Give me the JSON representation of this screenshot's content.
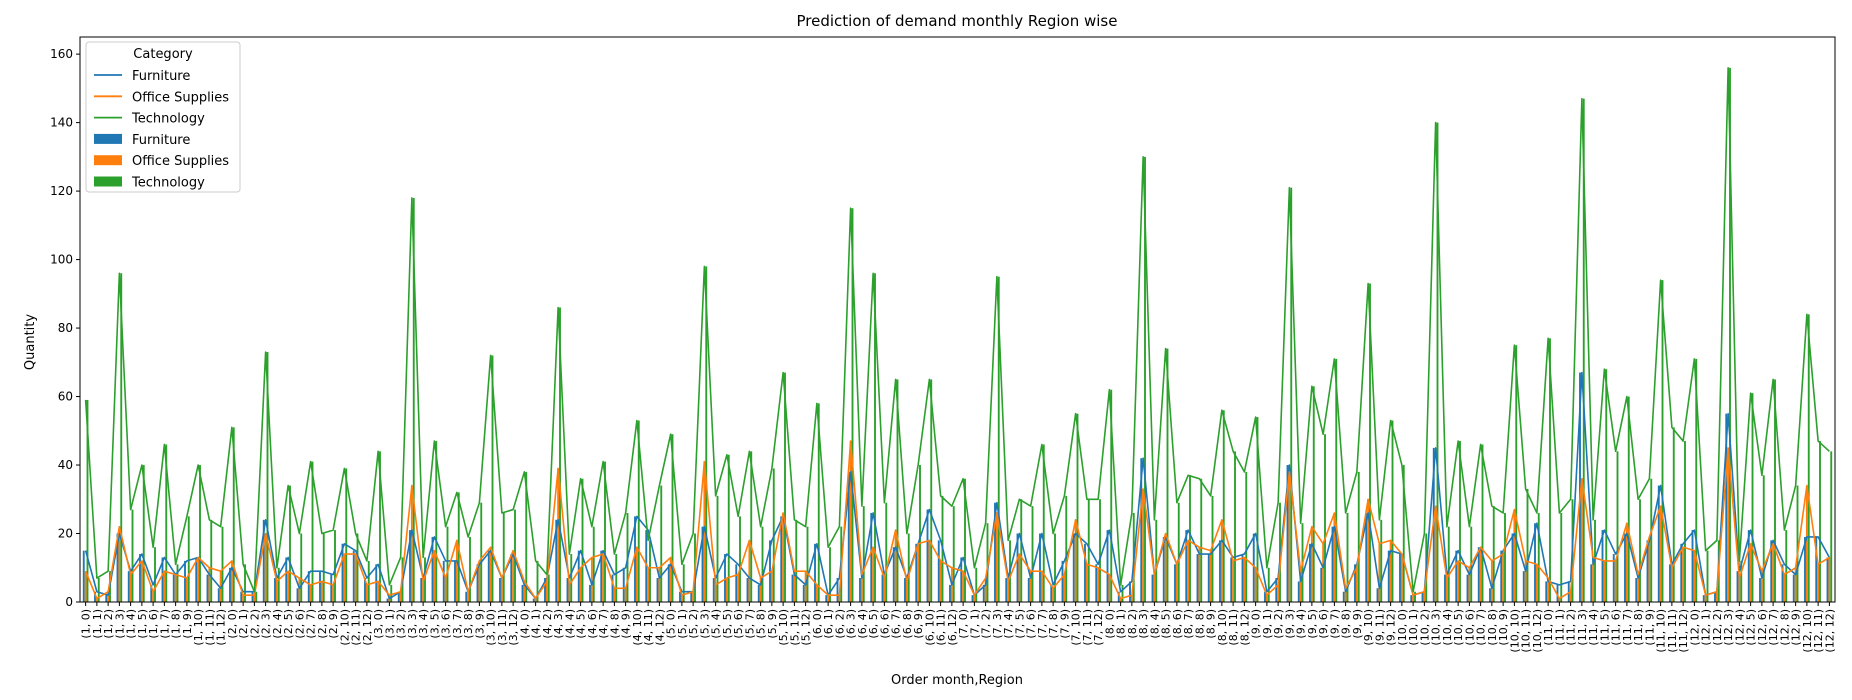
{
  "chart_data": {
    "type": "bar",
    "title": "Prediction of demand monthly Region wise",
    "xlabel": "Order month,Region",
    "ylabel": "Quantity",
    "ylim": [
      0,
      165
    ],
    "yticks": [
      0,
      20,
      40,
      60,
      80,
      100,
      120,
      140,
      160
    ],
    "grid": false,
    "legend": {
      "title": "Category",
      "placement": "upper-left",
      "entries": [
        {
          "kind": "line",
          "label": "Furniture",
          "color": "#1f77b4"
        },
        {
          "kind": "line",
          "label": "Office Supplies",
          "color": "#ff7f0e"
        },
        {
          "kind": "line",
          "label": "Technology",
          "color": "#2ca02c"
        },
        {
          "kind": "bar",
          "label": "Furniture",
          "color": "#1f77b4"
        },
        {
          "kind": "bar",
          "label": "Office Supplies",
          "color": "#ff7f0e"
        },
        {
          "kind": "bar",
          "label": "Technology",
          "color": "#2ca02c"
        }
      ]
    },
    "categories": [
      "(1, 0)",
      "(1, 1)",
      "(1, 2)",
      "(1, 3)",
      "(1, 4)",
      "(1, 5)",
      "(1, 6)",
      "(1, 7)",
      "(1, 8)",
      "(1, 9)",
      "(1, 10)",
      "(1, 11)",
      "(1, 12)",
      "(2, 0)",
      "(2, 1)",
      "(2, 2)",
      "(2, 3)",
      "(2, 4)",
      "(2, 5)",
      "(2, 6)",
      "(2, 7)",
      "(2, 8)",
      "(2, 9)",
      "(2, 10)",
      "(2, 11)",
      "(2, 12)",
      "(3, 0)",
      "(3, 1)",
      "(3, 2)",
      "(3, 3)",
      "(3, 4)",
      "(3, 5)",
      "(3, 6)",
      "(3, 7)",
      "(3, 8)",
      "(3, 9)",
      "(3, 10)",
      "(3, 11)",
      "(3, 12)",
      "(4, 0)",
      "(4, 1)",
      "(4, 2)",
      "(4, 3)",
      "(4, 4)",
      "(4, 5)",
      "(4, 6)",
      "(4, 7)",
      "(4, 8)",
      "(4, 9)",
      "(4, 10)",
      "(4, 11)",
      "(4, 12)",
      "(5, 0)",
      "(5, 1)",
      "(5, 2)",
      "(5, 3)",
      "(5, 4)",
      "(5, 5)",
      "(5, 6)",
      "(5, 7)",
      "(5, 8)",
      "(5, 9)",
      "(5, 10)",
      "(5, 11)",
      "(5, 12)",
      "(6, 0)",
      "(6, 1)",
      "(6, 2)",
      "(6, 3)",
      "(6, 4)",
      "(6, 5)",
      "(6, 6)",
      "(6, 7)",
      "(6, 8)",
      "(6, 9)",
      "(6, 10)",
      "(6, 11)",
      "(6, 12)",
      "(7, 0)",
      "(7, 1)",
      "(7, 2)",
      "(7, 3)",
      "(7, 4)",
      "(7, 5)",
      "(7, 6)",
      "(7, 7)",
      "(7, 8)",
      "(7, 9)",
      "(7, 10)",
      "(7, 11)",
      "(7, 12)",
      "(8, 0)",
      "(8, 1)",
      "(8, 2)",
      "(8, 3)",
      "(8, 4)",
      "(8, 5)",
      "(8, 6)",
      "(8, 7)",
      "(8, 8)",
      "(8, 9)",
      "(8, 10)",
      "(8, 11)",
      "(8, 12)",
      "(9, 0)",
      "(9, 1)",
      "(9, 2)",
      "(9, 3)",
      "(9, 4)",
      "(9, 5)",
      "(9, 6)",
      "(9, 7)",
      "(9, 8)",
      "(9, 9)",
      "(9, 10)",
      "(9, 11)",
      "(9, 12)",
      "(10, 0)",
      "(10, 1)",
      "(10, 2)",
      "(10, 3)",
      "(10, 4)",
      "(10, 5)",
      "(10, 6)",
      "(10, 7)",
      "(10, 8)",
      "(10, 9)",
      "(10, 10)",
      "(10, 11)",
      "(10, 12)",
      "(11, 0)",
      "(11, 1)",
      "(11, 2)",
      "(11, 3)",
      "(11, 4)",
      "(11, 5)",
      "(11, 6)",
      "(11, 7)",
      "(11, 8)",
      "(11, 9)",
      "(11, 10)",
      "(11, 11)",
      "(11, 12)",
      "(12, 0)",
      "(12, 1)",
      "(12, 2)",
      "(12, 3)",
      "(12, 4)",
      "(12, 5)",
      "(12, 6)",
      "(12, 7)",
      "(12, 8)",
      "(12, 9)",
      "(12, 10)",
      "(12, 11)",
      "(12, 12)"
    ],
    "series": [
      {
        "name": "Furniture",
        "color": "#1f77b4",
        "values": [
          15,
          3,
          2,
          20,
          9,
          14,
          5,
          13,
          8,
          12,
          13,
          8,
          4,
          10,
          3,
          3,
          24,
          7,
          13,
          4,
          9,
          9,
          8,
          17,
          15,
          7,
          11,
          1,
          3,
          21,
          7,
          19,
          12,
          12,
          3,
          11,
          15,
          7,
          14,
          5,
          1,
          7,
          24,
          7,
          15,
          5,
          15,
          8,
          10,
          25,
          21,
          7,
          11,
          3,
          3,
          22,
          7,
          14,
          11,
          7,
          5,
          18,
          25,
          8,
          5,
          17,
          2,
          7,
          38,
          7,
          26,
          8,
          16,
          7,
          17,
          27,
          18,
          5,
          13,
          2,
          5,
          29,
          7,
          20,
          7,
          20,
          5,
          12,
          20,
          17,
          11,
          21,
          3,
          6,
          42,
          8,
          19,
          11,
          21,
          14,
          14,
          18,
          13,
          14,
          20,
          3,
          7,
          40,
          6,
          17,
          10,
          22,
          3,
          11,
          26,
          4,
          15,
          14,
          2,
          3,
          45,
          8,
          15,
          8,
          16,
          4,
          15,
          20,
          9,
          23,
          6,
          5,
          6,
          67,
          11,
          21,
          14,
          20,
          7,
          18,
          34,
          11,
          17,
          21,
          2,
          3,
          55,
          9,
          21,
          7,
          18,
          11,
          8,
          19,
          19,
          13
        ]
      },
      {
        "name": "Office Supplies",
        "color": "#ff7f0e",
        "values": [
          9,
          1,
          3,
          22,
          8,
          12,
          3,
          9,
          8,
          7,
          13,
          10,
          9,
          12,
          2,
          2,
          20,
          6,
          9,
          7,
          5,
          6,
          5,
          14,
          14,
          5,
          6,
          2,
          3,
          34,
          6,
          15,
          7,
          18,
          3,
          12,
          16,
          7,
          15,
          6,
          1,
          6,
          39,
          5,
          10,
          13,
          14,
          4,
          4,
          16,
          10,
          10,
          13,
          2,
          3,
          41,
          5,
          7,
          8,
          18,
          7,
          9,
          26,
          9,
          9,
          5,
          2,
          2,
          47,
          8,
          16,
          7,
          21,
          6,
          17,
          18,
          12,
          10,
          9,
          2,
          7,
          26,
          6,
          14,
          9,
          9,
          4,
          8,
          24,
          11,
          10,
          8,
          1,
          2,
          33,
          8,
          20,
          11,
          18,
          16,
          15,
          24,
          12,
          13,
          10,
          2,
          5,
          38,
          9,
          22,
          17,
          26,
          4,
          10,
          30,
          17,
          18,
          14,
          2,
          3,
          28,
          7,
          12,
          10,
          16,
          12,
          14,
          27,
          12,
          11,
          7,
          1,
          3,
          36,
          13,
          12,
          12,
          23,
          8,
          19,
          28,
          10,
          16,
          15,
          2,
          3,
          45,
          7,
          17,
          9,
          17,
          8,
          10,
          34,
          11,
          13
        ]
      },
      {
        "name": "Technology",
        "color": "#2ca02c",
        "values": [
          59,
          7,
          9,
          96,
          27,
          40,
          16,
          46,
          11,
          25,
          40,
          24,
          22,
          51,
          11,
          3,
          73,
          10,
          34,
          20,
          41,
          20,
          21,
          39,
          20,
          12,
          44,
          5,
          13,
          118,
          13,
          47,
          22,
          32,
          19,
          29,
          72,
          26,
          27,
          38,
          12,
          8,
          86,
          14,
          36,
          22,
          41,
          14,
          26,
          53,
          18,
          34,
          49,
          11,
          20,
          98,
          31,
          43,
          25,
          44,
          22,
          39,
          67,
          24,
          22,
          58,
          16,
          22,
          115,
          28,
          96,
          29,
          65,
          20,
          40,
          65,
          31,
          28,
          36,
          10,
          23,
          95,
          18,
          30,
          28,
          46,
          20,
          31,
          55,
          30,
          30,
          62,
          5,
          26,
          130,
          24,
          74,
          29,
          37,
          36,
          31,
          56,
          44,
          38,
          54,
          10,
          29,
          121,
          23,
          63,
          49,
          71,
          26,
          38,
          93,
          24,
          53,
          40,
          3,
          20,
          140,
          22,
          47,
          22,
          46,
          28,
          26,
          75,
          33,
          26,
          77,
          26,
          30,
          147,
          24,
          68,
          44,
          60,
          30,
          36,
          94,
          51,
          47,
          71,
          15,
          18,
          156,
          12,
          61,
          37,
          65,
          21,
          34,
          84,
          47,
          44
        ]
      }
    ]
  }
}
